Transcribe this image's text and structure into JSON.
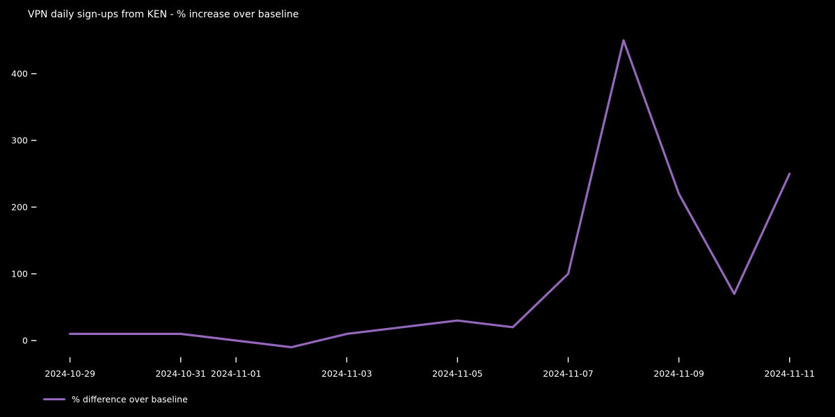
{
  "chart_title": "VPN daily sign-ups from KEN - % increase over baseline",
  "chart_data": {
    "type": "line",
    "x": [
      "2024-10-29",
      "2024-10-30",
      "2024-10-31",
      "2024-11-01",
      "2024-11-02",
      "2024-11-03",
      "2024-11-04",
      "2024-11-05",
      "2024-11-06",
      "2024-11-07",
      "2024-11-08",
      "2024-11-09",
      "2024-11-10",
      "2024-11-11"
    ],
    "series": [
      {
        "name": "% difference over baseline",
        "values": [
          10,
          10,
          10,
          0,
          -10,
          10,
          20,
          30,
          20,
          100,
          450,
          220,
          70,
          250
        ],
        "color": "#9467bd"
      }
    ],
    "title": "VPN daily sign-ups from KEN - % increase over baseline",
    "xlabel": "",
    "ylabel": "",
    "yticks": [
      0,
      100,
      200,
      300,
      400
    ],
    "xticks": [
      {
        "index": 0,
        "label": "2024-10-29"
      },
      {
        "index": 2,
        "label": "2024-10-31"
      },
      {
        "index": 3,
        "label": "2024-11-01"
      },
      {
        "index": 5,
        "label": "2024-11-03"
      },
      {
        "index": 7,
        "label": "2024-11-05"
      },
      {
        "index": 9,
        "label": "2024-11-07"
      },
      {
        "index": 11,
        "label": "2024-11-09"
      },
      {
        "index": 13,
        "label": "2024-11-11"
      }
    ],
    "ylim": [
      -33,
      473
    ],
    "grid": false,
    "legend": {
      "position": "lower-left",
      "frame": false,
      "entries": [
        "% difference over baseline"
      ]
    },
    "background_color": "#000000",
    "text_color": "#ffffff"
  }
}
